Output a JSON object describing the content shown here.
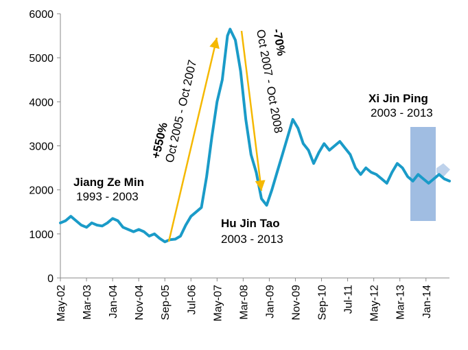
{
  "chart_data": {
    "type": "line",
    "title": "",
    "xlabel": "",
    "ylabel": "",
    "ylim": [
      0,
      6000
    ],
    "yticks": [
      0,
      1000,
      2000,
      3000,
      4000,
      5000,
      6000
    ],
    "ytick_labels": [
      "0",
      "1000",
      "2000",
      "3000",
      "4000",
      "5000",
      "6000"
    ],
    "xlim": [
      "2002-05",
      "2014-10"
    ],
    "xtick_labels": [
      "May-02",
      "Mar-03",
      "Jan-04",
      "Nov-04",
      "Sep-05",
      "Jul-06",
      "May-07",
      "Mar-08",
      "Jan-09",
      "Nov-09",
      "Sep-10",
      "Jul-11",
      "May-12",
      "Mar-13",
      "Jan-14"
    ],
    "xtick_dates": [
      "2002-05",
      "2003-03",
      "2004-01",
      "2004-11",
      "2005-09",
      "2006-07",
      "2007-05",
      "2008-03",
      "2009-01",
      "2009-11",
      "2010-09",
      "2011-07",
      "2012-05",
      "2013-03",
      "2014-01"
    ],
    "grid": false,
    "line_color": "#1a9bc8",
    "series": [
      {
        "x": [
          "2002-05",
          "2002-07",
          "2002-09",
          "2002-11",
          "2003-01",
          "2003-03",
          "2003-05",
          "2003-07",
          "2003-09",
          "2003-11",
          "2004-01",
          "2004-03",
          "2004-05",
          "2004-07",
          "2004-09",
          "2004-11",
          "2005-01",
          "2005-03",
          "2005-05",
          "2005-07",
          "2005-09",
          "2005-11",
          "2006-01",
          "2006-03",
          "2006-05",
          "2006-07",
          "2006-09",
          "2006-11",
          "2007-01",
          "2007-03",
          "2007-05",
          "2007-07",
          "2007-09",
          "2007-10",
          "2007-12",
          "2008-02",
          "2008-04",
          "2008-06",
          "2008-08",
          "2008-10",
          "2008-12",
          "2009-02",
          "2009-04",
          "2009-06",
          "2009-08",
          "2009-10",
          "2009-12",
          "2010-02",
          "2010-04",
          "2010-06",
          "2010-08",
          "2010-10",
          "2010-12",
          "2011-02",
          "2011-04",
          "2011-06",
          "2011-08",
          "2011-10",
          "2011-12",
          "2012-02",
          "2012-04",
          "2012-06",
          "2012-08",
          "2012-10",
          "2012-12",
          "2013-02",
          "2013-04",
          "2013-06",
          "2013-08",
          "2013-10",
          "2013-12",
          "2014-02",
          "2014-04",
          "2014-06",
          "2014-08",
          "2014-10"
        ],
        "values": [
          1250,
          1300,
          1400,
          1300,
          1200,
          1150,
          1250,
          1200,
          1180,
          1250,
          1350,
          1300,
          1150,
          1100,
          1050,
          1100,
          1050,
          950,
          1000,
          900,
          820,
          870,
          880,
          950,
          1200,
          1400,
          1500,
          1600,
          2300,
          3200,
          4000,
          4500,
          5500,
          5650,
          5400,
          4700,
          3600,
          2800,
          2400,
          1800,
          1650,
          2000,
          2400,
          2800,
          3200,
          3600,
          3400,
          3050,
          2900,
          2600,
          2850,
          3050,
          2900,
          3000,
          3100,
          2950,
          2800,
          2500,
          2350,
          2500,
          2400,
          2350,
          2250,
          2150,
          2400,
          2600,
          2500,
          2300,
          2200,
          2350,
          2250,
          2150,
          2250,
          2350,
          2250,
          2200
        ]
      }
    ],
    "annotations": {
      "jiang_name": "Jiang Ze Min",
      "jiang_years": "1993 - 2003",
      "hu_name": "Hu Jin Tao",
      "hu_years": "2003 - 2013",
      "xi_name": "Xi Jin Ping",
      "xi_years": "2003 - 2013",
      "rise_pct": "+550%",
      "rise_period": "Oct 2005 - Oct 2007",
      "fall_pct": "-70%",
      "fall_period": "Oct 2007 - Oct 2008"
    },
    "arrow_color": "#f5b800",
    "highlight_color": "#8fb2dd"
  }
}
